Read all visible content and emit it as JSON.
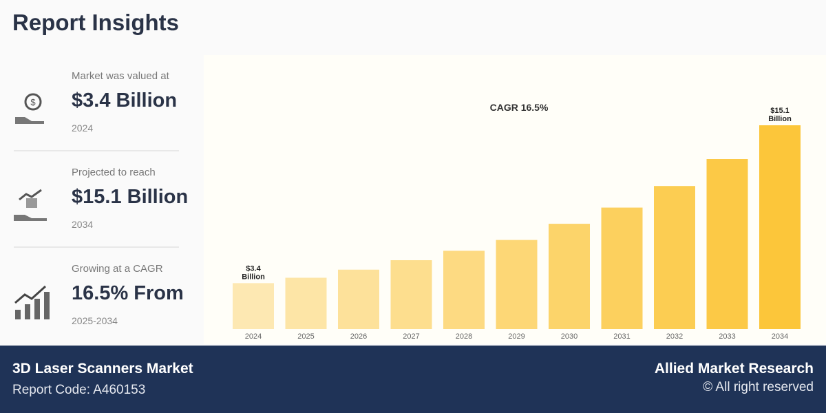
{
  "title": "Report Insights",
  "stats": [
    {
      "label": "Market was valued at",
      "value": "$3.4 Billion",
      "year": "2024",
      "icon": "money-hand-icon"
    },
    {
      "label": "Projected to reach",
      "value": "$15.1 Billion",
      "year": "2034",
      "icon": "growth-hand-icon"
    },
    {
      "label": "Growing at a CAGR",
      "value": "16.5% From",
      "year": "2025-2034",
      "icon": "bar-growth-icon"
    }
  ],
  "chart_data": {
    "type": "bar",
    "categories": [
      "2024",
      "2025",
      "2026",
      "2027",
      "2028",
      "2029",
      "2030",
      "2031",
      "2032",
      "2033",
      "2034"
    ],
    "values": [
      3.4,
      3.8,
      4.4,
      5.1,
      5.8,
      6.6,
      7.8,
      9.0,
      10.6,
      12.6,
      15.1
    ],
    "annotations": [
      {
        "category": "2024",
        "text": [
          "$3.4",
          "Billion"
        ]
      },
      {
        "category": "2034",
        "text": [
          "$15.1",
          "Billion"
        ]
      }
    ],
    "cagr_label": "CAGR 16.5%",
    "ylim": [
      0,
      15.1
    ],
    "grid": false,
    "colors": {
      "start": "#fde8b2",
      "end": "#fcc63a"
    }
  },
  "footer": {
    "market": "3D Laser Scanners Market",
    "code": "Report Code: A460153",
    "brand": "Allied Market Research",
    "rights": "© All right reserved"
  }
}
